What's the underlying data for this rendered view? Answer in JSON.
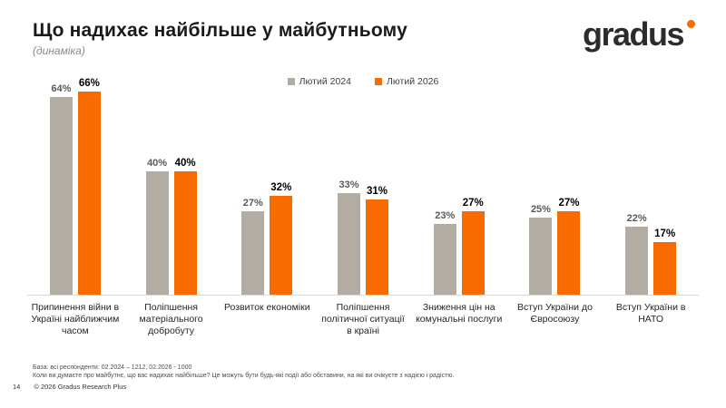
{
  "header": {
    "title": "Що надихає найбільше у майбутньому",
    "subtitle": "(динаміка)",
    "logo_text": "gradus"
  },
  "colors": {
    "series_2024": "#b3aca3",
    "series_2026": "#f76b00",
    "logo_dot": "#f76b00",
    "baseline": "#d9d9d9"
  },
  "chart_data": {
    "type": "bar",
    "title": "Що надихає найбільше у майбутньому (динаміка)",
    "value_suffix": "%",
    "ylim": [
      0,
      70
    ],
    "grid": false,
    "legend_position": "top",
    "categories": [
      "Припинення війни в Україні найближчим часом",
      "Поліпшення матеріального добробуту",
      "Розвиток економіки",
      "Поліпшення політичної ситуації в країні",
      "Зниження цін на комунальні послуги",
      "Вступ України до Євросоюзу",
      "Вступ України в НАТО"
    ],
    "series": [
      {
        "name": "Лютий 2024",
        "color": "#b3aca3",
        "values": [
          64,
          40,
          27,
          33,
          23,
          25,
          22
        ]
      },
      {
        "name": "Лютий 2026",
        "color": "#f76b00",
        "values": [
          66,
          40,
          32,
          31,
          27,
          27,
          17
        ]
      }
    ]
  },
  "footnotes": {
    "base": "База: всі респонденти: 02.2024 – 1212, 02.2026 - 1000",
    "question": "Коли ви думаєте про майбутнє, що вас надихає найбільше? Це можуть бути будь-які події або обставини, на які ви очікуєте з надією і радістю."
  },
  "footer": {
    "page_number": "14",
    "copyright": "© 2026 Gradus Research Plus"
  }
}
